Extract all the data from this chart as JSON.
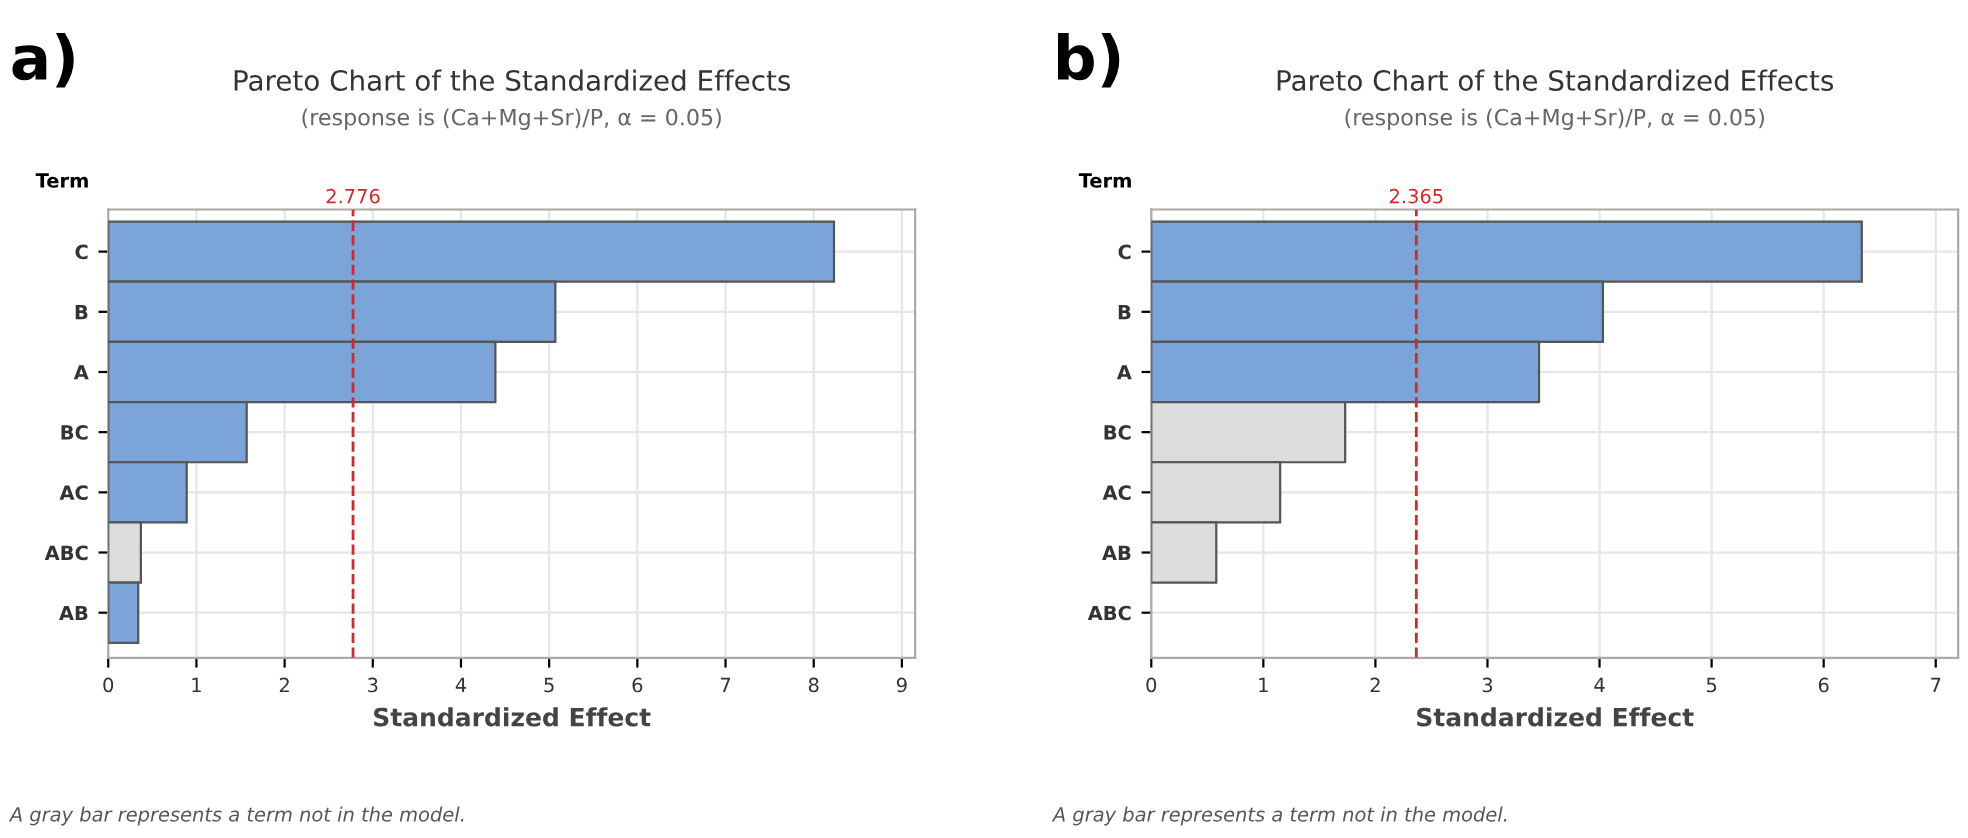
{
  "chart_data": [
    {
      "type": "bar",
      "orientation": "horizontal",
      "title": "Pareto Chart of the Standardized Effects",
      "subtitle": "(response is (Ca+Mg+Sr)/P, α = 0.05)",
      "xlabel": "Standardized Effect",
      "ylabel": "Term",
      "categories": [
        "C",
        "B",
        "A",
        "BC",
        "AC",
        "ABC",
        "AB"
      ],
      "values": [
        8.23,
        5.07,
        4.39,
        1.57,
        0.89,
        0.37,
        0.34
      ],
      "colors": [
        "#7ba5d8",
        "#7ba5d8",
        "#7ba5d8",
        "#7ba5d8",
        "#7ba5d8",
        "#dcdcdc",
        "#7ba5d8"
      ],
      "xlim": [
        0,
        9.15
      ],
      "xticks": [
        0,
        1,
        2,
        3,
        4,
        5,
        6,
        7,
        8,
        9
      ],
      "grid": true,
      "ref_lines": [
        {
          "axis": "x",
          "value": 2.776,
          "label": "2.776",
          "color": "#d62728",
          "line_style": "dashed"
        }
      ],
      "annotations": [
        "a)",
        "A gray bar represents a term not in the model."
      ]
    },
    {
      "type": "bar",
      "orientation": "horizontal",
      "title": "Pareto Chart of the Standardized Effects",
      "subtitle": "(response is (Ca+Mg+Sr)/P, α = 0.05)",
      "xlabel": "Standardized Effect",
      "ylabel": "Term",
      "categories": [
        "C",
        "B",
        "A",
        "BC",
        "AC",
        "AB",
        "ABC"
      ],
      "values": [
        6.34,
        4.03,
        3.46,
        1.73,
        1.15,
        0.58,
        null
      ],
      "colors": [
        "#7ba5d8",
        "#7ba5d8",
        "#7ba5d8",
        "#dcdcdc",
        "#dcdcdc",
        "#dcdcdc",
        "#dcdcdc"
      ],
      "xlim": [
        0,
        7.2
      ],
      "xticks": [
        0,
        1,
        2,
        3,
        4,
        5,
        6,
        7
      ],
      "grid": true,
      "ref_lines": [
        {
          "axis": "x",
          "value": 2.365,
          "label": "2.365",
          "color": "#d62728",
          "line_style": "dashed"
        }
      ],
      "annotations": [
        "b)",
        "A gray bar represents a term not in the model."
      ]
    }
  ]
}
